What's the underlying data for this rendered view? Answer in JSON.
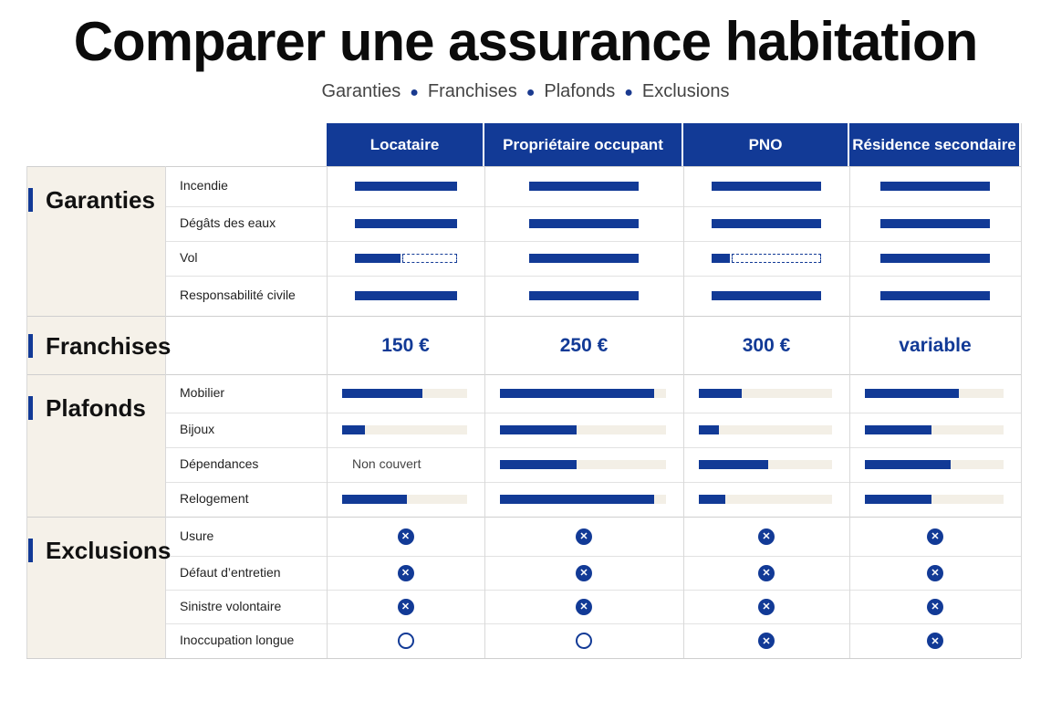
{
  "title": "Comparer une assurance habitation",
  "subtitle": [
    "Garanties",
    "Franchises",
    "Plafonds",
    "Exclusions"
  ],
  "columns": [
    "Locataire",
    "Propriétaire occupant",
    "PNO",
    "Résidence secondaire"
  ],
  "colors": {
    "accent": "#123a96",
    "sidebar": "#f5f1e9",
    "track": "#f3efe6"
  },
  "sections": {
    "garanties": {
      "label": "Garanties",
      "rows": [
        {
          "label": "Incendie",
          "coverage": [
            1,
            1,
            1,
            1
          ]
        },
        {
          "label": "Dégâts des eaux",
          "coverage": [
            1,
            1,
            1,
            1
          ]
        },
        {
          "label": "Vol",
          "coverage": [
            0.45,
            1,
            0.17,
            1
          ]
        },
        {
          "label": "Responsabilité civile",
          "coverage": [
            1,
            1,
            1,
            1
          ]
        }
      ]
    },
    "franchises": {
      "label": "Franchises",
      "values": [
        "150 €",
        "250 €",
        "300 €",
        "variable"
      ]
    },
    "plafonds": {
      "label": "Plafonds",
      "non_couvert": "Non couvert",
      "rows": [
        {
          "label": "Mobilier",
          "levels": [
            0.64,
            0.93,
            0.32,
            0.68
          ]
        },
        {
          "label": "Bijoux",
          "levels": [
            0.18,
            0.46,
            0.15,
            0.48
          ]
        },
        {
          "label": "Dépendances",
          "levels": [
            null,
            0.46,
            0.52,
            0.62
          ]
        },
        {
          "label": "Relogement",
          "levels": [
            0.52,
            0.93,
            0.2,
            0.48
          ]
        }
      ]
    },
    "exclusions": {
      "label": "Exclusions",
      "excluded_icon": "x-circle-icon",
      "not_excluded_icon": "empty-circle-icon",
      "rows": [
        {
          "label": "Usure",
          "excluded": [
            true,
            true,
            true,
            true
          ]
        },
        {
          "label": "Défaut d’entretien",
          "excluded": [
            true,
            true,
            true,
            true
          ]
        },
        {
          "label": "Sinistre volontaire",
          "excluded": [
            true,
            true,
            true,
            true
          ]
        },
        {
          "label": "Inoccupation longue",
          "excluded": [
            false,
            false,
            true,
            true
          ]
        }
      ]
    }
  }
}
